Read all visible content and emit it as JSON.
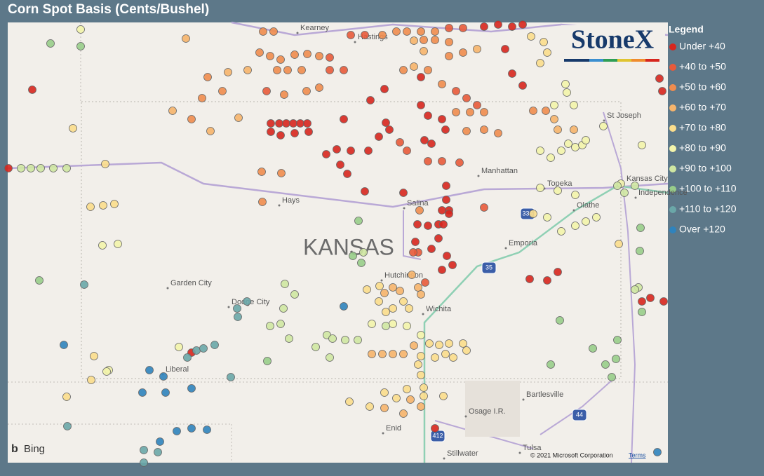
{
  "header": {
    "title": "Corn Spot Basis (Cents/Bushel)"
  },
  "legend": {
    "title": "Legend",
    "items": [
      {
        "label": "Under +40",
        "color": "#d7261e"
      },
      {
        "label": "+40 to +50",
        "color": "#e85a3a"
      },
      {
        "label": "+50 to +60",
        "color": "#f08c4e"
      },
      {
        "label": "+60 to +70",
        "color": "#f6b46c"
      },
      {
        "label": "+70 to +80",
        "color": "#fbdd8c"
      },
      {
        "label": "+80 to +90",
        "color": "#f3f4ab"
      },
      {
        "label": "+90 to +100",
        "color": "#cfe7a2"
      },
      {
        "label": "+100 to +110",
        "color": "#98cd8a"
      },
      {
        "label": "+110 to +120",
        "color": "#6aa7a8"
      },
      {
        "label": "Over +120",
        "color": "#2f83bd"
      }
    ]
  },
  "map": {
    "state_label": "KANSAS",
    "places": [
      "Kearney",
      "Hastings",
      "St Joseph",
      "Manhattan",
      "Topeka",
      "Kansas City",
      "Independence",
      "Hays",
      "Salina",
      "Olathe",
      "Emporia",
      "Hutchinson",
      "Garden City",
      "Dodge City",
      "Wichita",
      "Liberal",
      "Bartlesville",
      "Osage I.R.",
      "Enid",
      "Tulsa",
      "Stillwater"
    ],
    "highways": [
      "335",
      "35",
      "44",
      "412"
    ]
  },
  "logo": "StoneX",
  "attribution": {
    "provider": "Bing",
    "copyright": "© 2021 Microsoft Corporation",
    "terms": "Terms"
  }
}
